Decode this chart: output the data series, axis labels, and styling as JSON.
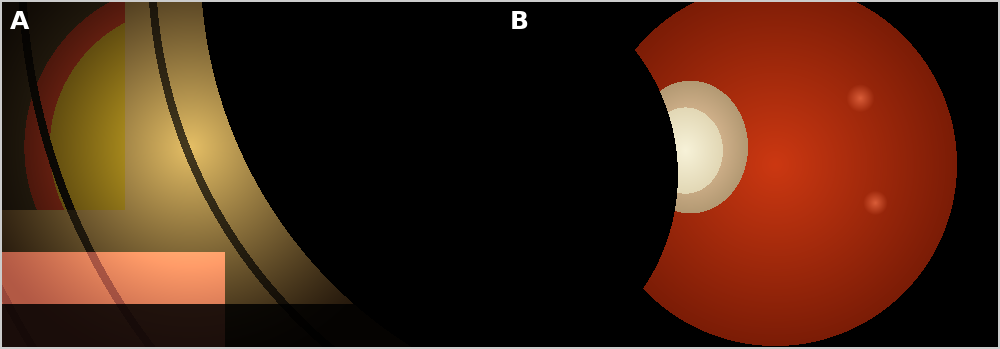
{
  "label_A": "A",
  "label_B": "B",
  "label_color": "#ffffff",
  "label_fontsize": 18,
  "label_fontweight": "bold",
  "background_color": "#000000",
  "fig_width": 10.0,
  "fig_height": 3.49,
  "dpi": 100
}
